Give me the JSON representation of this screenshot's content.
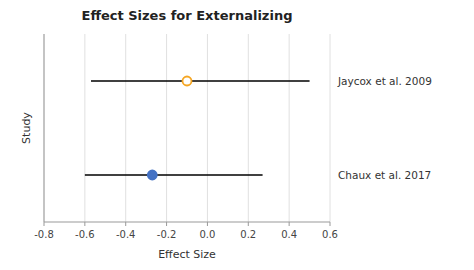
{
  "chart_data": {
    "type": "forest",
    "title": "Effect Sizes for Externalizing",
    "xlabel": "Effect Size",
    "ylabel": "Study",
    "categories": [
      "Jaycox et al. 2009",
      "Chaux et al. 2017"
    ],
    "series": [
      {
        "color": "#f5a623",
        "marker": "open-circle",
        "values": [
          -0.1,
          null
        ],
        "ci_low": [
          -0.57,
          null
        ],
        "ci_high": [
          0.5,
          null
        ]
      },
      {
        "color": "#4472c4",
        "marker": "circle",
        "values": [
          null,
          -0.27
        ],
        "ci_low": [
          null,
          -0.6
        ],
        "ci_high": [
          null,
          0.27
        ]
      }
    ],
    "xlim": [
      -0.8,
      0.6
    ],
    "xticks": [
      -0.8,
      -0.6,
      -0.4,
      -0.2,
      {
        "value": 0,
        "label": "0.0"
      },
      0.2,
      0.4,
      0.6
    ],
    "grid": true,
    "tick_labels": "x"
  }
}
